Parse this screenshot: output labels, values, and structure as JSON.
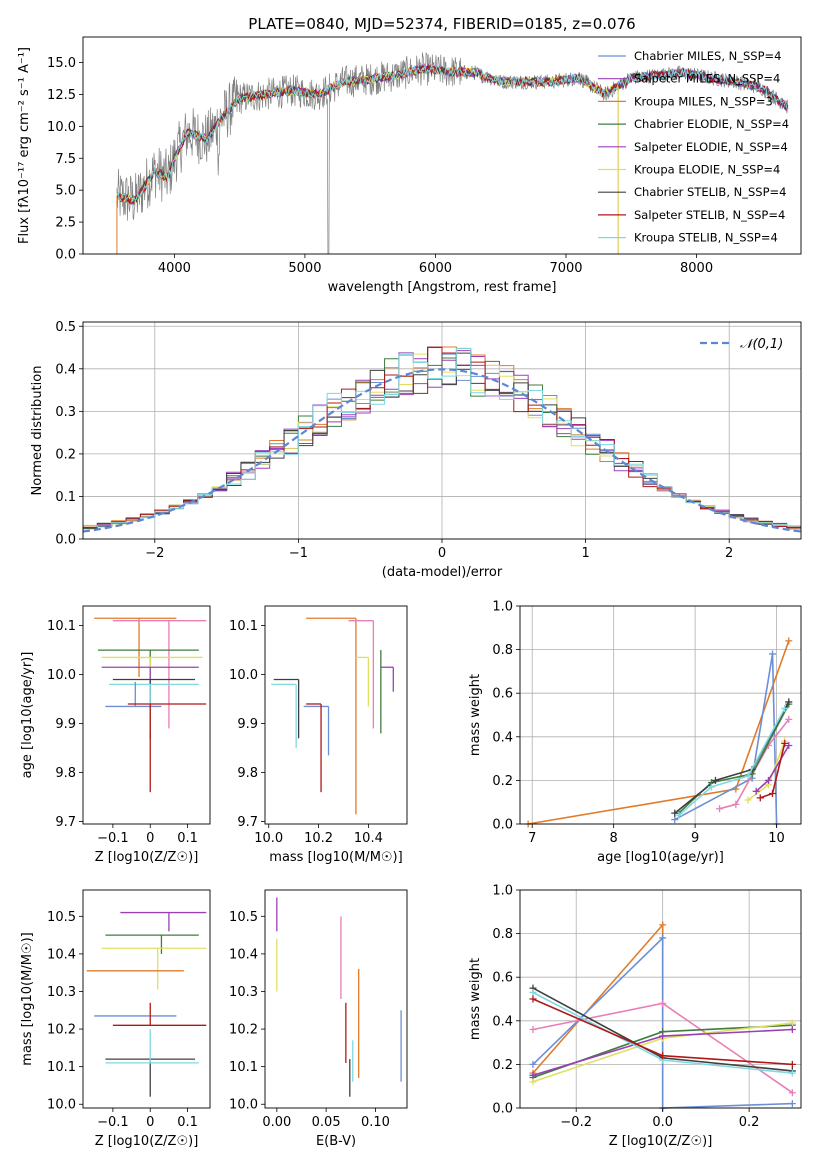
{
  "chart_data": [
    {
      "id": "spectrum",
      "type": "line",
      "title": "PLATE=0840, MJD=52374, FIBERID=0185, z=0.076",
      "xlabel": "wavelength [Angstrom, rest frame]",
      "ylabel": "Flux [fλ10⁻¹⁷ erg cm⁻² s⁻¹ A⁻¹]",
      "xlim": [
        3300,
        8800
      ],
      "ylim": [
        0,
        17
      ],
      "xticks": [
        4000,
        5000,
        6000,
        7000,
        8000
      ],
      "yticks": [
        0.0,
        2.5,
        5.0,
        7.5,
        10.0,
        12.5,
        15.0
      ],
      "grid": false,
      "legend_position": "right",
      "legend": [
        {
          "label": "Chabrier MILES, N_SSP=4",
          "color": "#6b8fd6"
        },
        {
          "label": "Salpeter MILES, N_SSP=4",
          "color": "#9a40b5"
        },
        {
          "label": "Kroupa MILES, N_SSP=3",
          "color": "#e07b2a"
        },
        {
          "label": "Chabrier ELODIE, N_SSP=4",
          "color": "#3e7d3e"
        },
        {
          "label": "Salpeter ELODIE, N_SSP=4",
          "color": "#a040c0"
        },
        {
          "label": "Kroupa ELODIE, N_SSP=4",
          "color": "#e0e060"
        },
        {
          "label": "Chabrier STELIB, N_SSP=4",
          "color": "#404040"
        },
        {
          "label": "Salpeter STELIB, N_SSP=4",
          "color": "#b01818"
        },
        {
          "label": "Kroupa STELIB, N_SSP=4",
          "color": "#80d8e0"
        }
      ],
      "data_color": "#808080",
      "data_envelope": {
        "x": [
          3560,
          3700,
          3850,
          3950,
          4000,
          4100,
          4250,
          4350,
          4500,
          4700,
          4900,
          5100,
          5300,
          5500,
          5700,
          5900,
          6100,
          6300,
          6500,
          6700,
          6900,
          7100,
          7300,
          7500,
          7700,
          7900,
          8100,
          8300,
          8500,
          8700
        ],
        "y": [
          4.5,
          4.2,
          6.5,
          6.0,
          7.5,
          9.5,
          9.0,
          10.5,
          12.2,
          12.5,
          12.8,
          12.5,
          13.5,
          13.7,
          14.0,
          14.5,
          14.3,
          14.2,
          13.5,
          13.5,
          13.5,
          13.8,
          12.5,
          13.8,
          14.0,
          14.2,
          13.8,
          13.5,
          13.0,
          11.5
        ]
      }
    },
    {
      "id": "residual-histogram",
      "type": "bar",
      "xlabel": "(data-model)/error",
      "ylabel": "Normed distribution",
      "xlim": [
        -2.5,
        2.5
      ],
      "ylim": [
        0,
        0.51
      ],
      "xticks": [
        -2,
        -1,
        0,
        1,
        2
      ],
      "yticks": [
        0.0,
        0.1,
        0.2,
        0.3,
        0.4,
        0.5
      ],
      "grid": true,
      "legend_position": "top-right",
      "gaussian_label": "𝒩(0,1)",
      "gaussian_color": "#5b87d6",
      "bin_width": 0.1,
      "bin_start": -2.5,
      "series_colors": [
        "#6b8fd6",
        "#9a40b5",
        "#e07b2a",
        "#3e7d3e",
        "#a040c0",
        "#e0e060",
        "#404040",
        "#b01818",
        "#80d8e0"
      ]
    },
    {
      "id": "age-vs-Z",
      "type": "scatter",
      "xlabel": "Z [log10(Z/Z☉)]",
      "ylabel": "age  [log10(age/yr)]",
      "xlim": [
        -0.18,
        0.16
      ],
      "ylim": [
        9.695,
        10.14
      ],
      "xticks": [
        -0.1,
        0.0,
        0.1
      ],
      "yticks": [
        9.7,
        9.8,
        9.9,
        10.0,
        10.1
      ],
      "points": [
        {
          "x": -0.03,
          "y": 10.115,
          "xerr": [
            0.12,
            0.1
          ],
          "yerr": [
            0.12,
            0.0
          ],
          "color": "#e07b2a"
        },
        {
          "x": 0.05,
          "y": 10.11,
          "xerr": [
            0.15,
            0.1
          ],
          "yerr": [
            0.22,
            0.0
          ],
          "color": "#e87fb8"
        },
        {
          "x": 0.0,
          "y": 10.05,
          "xerr": [
            0.14,
            0.13
          ],
          "yerr": [
            0.17,
            0.0
          ],
          "color": "#3e7d3e"
        },
        {
          "x": 0.0,
          "y": 10.035,
          "xerr": [
            0.13,
            0.14
          ],
          "yerr": [
            0.1,
            0.0
          ],
          "color": "#e0e060"
        },
        {
          "x": 0.0,
          "y": 10.015,
          "xerr": [
            0.13,
            0.13
          ],
          "yerr": [
            0.06,
            0.0
          ],
          "color": "#9a40b5"
        },
        {
          "x": 0.0,
          "y": 9.99,
          "xerr": [
            0.1,
            0.12
          ],
          "yerr": [
            0.12,
            0.0
          ],
          "color": "#404040"
        },
        {
          "x": 0.0,
          "y": 9.98,
          "xerr": [
            0.11,
            0.13
          ],
          "yerr": [
            0.1,
            0.0
          ],
          "color": "#80d8e0"
        },
        {
          "x": -0.04,
          "y": 9.935,
          "xerr": [
            0.08,
            0.07
          ],
          "yerr": [
            0.0,
            0.05
          ],
          "color": "#6b8fd6"
        },
        {
          "x": 0.0,
          "y": 9.94,
          "xerr": [
            0.06,
            0.15
          ],
          "yerr": [
            0.18,
            0.0
          ],
          "color": "#b01818"
        }
      ]
    },
    {
      "id": "age-vs-mass",
      "type": "scatter",
      "xlabel": "mass [log10(M/M☉)]",
      "ylabel": "",
      "xlim": [
        9.985,
        10.555
      ],
      "ylim": [
        9.695,
        10.14
      ],
      "xticks": [
        10.0,
        10.2,
        10.4
      ],
      "yticks": [
        9.7,
        9.8,
        9.9,
        10.0,
        10.1
      ],
      "points": [
        {
          "x": 10.35,
          "y": 10.115,
          "xerr": [
            0.2,
            0.0
          ],
          "yerr": [
            0.4,
            0.0
          ],
          "color": "#e07b2a"
        },
        {
          "x": 10.42,
          "y": 10.11,
          "xerr": [
            0.1,
            0.0
          ],
          "yerr": [
            0.22,
            0.0
          ],
          "color": "#e87fb8"
        },
        {
          "x": 10.45,
          "y": 10.05,
          "xerr": [
            0.0,
            0.0
          ],
          "yerr": [
            0.17,
            0.0
          ],
          "color": "#3e7d3e"
        },
        {
          "x": 10.4,
          "y": 10.035,
          "xerr": [
            0.05,
            0.0
          ],
          "yerr": [
            0.1,
            0.0
          ],
          "color": "#e0e060"
        },
        {
          "x": 10.5,
          "y": 10.015,
          "xerr": [
            0.05,
            0.0
          ],
          "yerr": [
            0.05,
            0.0
          ],
          "color": "#9a40b5"
        },
        {
          "x": 10.12,
          "y": 9.99,
          "xerr": [
            0.1,
            0.0
          ],
          "yerr": [
            0.12,
            0.0
          ],
          "color": "#404040"
        },
        {
          "x": 10.11,
          "y": 9.98,
          "xerr": [
            0.1,
            0.0
          ],
          "yerr": [
            0.13,
            0.0
          ],
          "color": "#80d8e0"
        },
        {
          "x": 10.24,
          "y": 9.935,
          "xerr": [
            0.1,
            0.0
          ],
          "yerr": [
            0.1,
            0.0
          ],
          "color": "#6b8fd6"
        },
        {
          "x": 10.21,
          "y": 9.94,
          "xerr": [
            0.06,
            0.0
          ],
          "yerr": [
            0.18,
            0.0
          ],
          "color": "#b01818"
        }
      ]
    },
    {
      "id": "massweight-vs-age",
      "type": "line",
      "xlabel": "age  [log10(age/yr)]",
      "ylabel": "mass weight",
      "xlim": [
        6.85,
        10.3
      ],
      "ylim": [
        0,
        1.0
      ],
      "xticks": [
        7,
        8,
        9,
        10
      ],
      "yticks": [
        0.0,
        0.2,
        0.4,
        0.6,
        0.8,
        1.0
      ],
      "grid": true,
      "series": [
        {
          "color": "#e07b2a",
          "x": [
            6.95,
            9.5,
            10.15
          ],
          "y": [
            0.0,
            0.16,
            0.84
          ]
        },
        {
          "color": "#6b8fd6",
          "x": [
            8.75,
            9.7,
            9.95,
            10.0
          ],
          "y": [
            0.02,
            0.21,
            0.78,
            0.0
          ]
        },
        {
          "color": "#e87fb8",
          "x": [
            9.3,
            9.5,
            9.9,
            10.15
          ],
          "y": [
            0.07,
            0.09,
            0.36,
            0.48
          ]
        },
        {
          "color": "#3e7d3e",
          "x": [
            8.8,
            9.2,
            9.7,
            10.15
          ],
          "y": [
            0.05,
            0.19,
            0.23,
            0.55
          ]
        },
        {
          "color": "#e0e060",
          "x": [
            9.65,
            9.9,
            10.1
          ],
          "y": [
            0.11,
            0.18,
            0.38
          ]
        },
        {
          "color": "#9a40b5",
          "x": [
            9.75,
            9.9,
            10.15
          ],
          "y": [
            0.15,
            0.2,
            0.36
          ]
        },
        {
          "color": "#404040",
          "x": [
            8.75,
            9.25,
            9.7,
            10.15
          ],
          "y": [
            0.05,
            0.2,
            0.25,
            0.56
          ]
        },
        {
          "color": "#80d8e0",
          "x": [
            8.8,
            9.2,
            9.65,
            10.1
          ],
          "y": [
            0.04,
            0.17,
            0.22,
            0.53
          ]
        },
        {
          "color": "#b01818",
          "x": [
            9.8,
            9.95,
            10.1
          ],
          "y": [
            0.12,
            0.14,
            0.37
          ]
        }
      ]
    },
    {
      "id": "mass-vs-Z",
      "type": "scatter",
      "xlabel": "Z [log10(Z/Z☉)]",
      "ylabel": "mass [log10(M/M☉)]",
      "xlim": [
        -0.18,
        0.16
      ],
      "ylim": [
        9.99,
        10.57
      ],
      "xticks": [
        -0.1,
        0.0,
        0.1
      ],
      "yticks": [
        10.0,
        10.1,
        10.2,
        10.3,
        10.4,
        10.5
      ],
      "points": [
        {
          "x": 0.05,
          "y": 10.51,
          "xerr": [
            0.13,
            0.1
          ],
          "yerr": [
            0.05,
            0.0
          ],
          "color": "#9a40b5"
        },
        {
          "x": 0.03,
          "y": 10.45,
          "xerr": [
            0.15,
            0.1
          ],
          "yerr": [
            0.05,
            0.0
          ],
          "color": "#3e7d3e"
        },
        {
          "x": 0.02,
          "y": 10.415,
          "xerr": [
            0.15,
            0.13
          ],
          "yerr": [
            0.11,
            0.0
          ],
          "color": "#e0e060"
        },
        {
          "x": -0.03,
          "y": 10.355,
          "xerr": [
            0.14,
            0.12
          ],
          "yerr": [
            0.0,
            0.0
          ],
          "color": "#e07b2a"
        },
        {
          "x": -0.05,
          "y": 10.235,
          "xerr": [
            0.1,
            0.12
          ],
          "yerr": [
            0.0,
            0.0
          ],
          "color": "#6b8fd6"
        },
        {
          "x": 0.0,
          "y": 10.21,
          "xerr": [
            0.1,
            0.15
          ],
          "yerr": [
            0.0,
            0.06
          ],
          "color": "#b01818"
        },
        {
          "x": 0.0,
          "y": 10.12,
          "xerr": [
            0.12,
            0.12
          ],
          "yerr": [
            0.1,
            0.0
          ],
          "color": "#404040"
        },
        {
          "x": 0.0,
          "y": 10.11,
          "xerr": [
            0.12,
            0.13
          ],
          "yerr": [
            0.0,
            0.09
          ],
          "color": "#80d8e0"
        }
      ]
    },
    {
      "id": "mass-vs-ebv",
      "type": "scatter",
      "xlabel": "E(B-V)",
      "ylabel": "",
      "xlim": [
        -0.012,
        0.132
      ],
      "ylim": [
        9.99,
        10.57
      ],
      "xticks": [
        0.0,
        0.05,
        0.1
      ],
      "xtick_labels": [
        "0.00",
        "0.05",
        "0.10"
      ],
      "yticks": [
        10.0,
        10.1,
        10.2,
        10.3,
        10.4,
        10.5
      ],
      "points": [
        {
          "x": 0.0,
          "y": 10.51,
          "yerr": [
            0.05,
            0.04
          ],
          "color": "#9a40b5"
        },
        {
          "x": 0.0,
          "y": 10.41,
          "yerr": [
            0.11,
            0.03
          ],
          "color": "#e0e060"
        },
        {
          "x": 0.065,
          "y": 10.39,
          "yerr": [
            0.11,
            0.11
          ],
          "color": "#e87fb8"
        },
        {
          "x": 0.07,
          "y": 10.19,
          "yerr": [
            0.08,
            0.08
          ],
          "color": "#b01818"
        },
        {
          "x": 0.074,
          "y": 10.12,
          "yerr": [
            0.1,
            0.0
          ],
          "color": "#404040"
        },
        {
          "x": 0.077,
          "y": 10.12,
          "yerr": [
            0.06,
            0.05
          ],
          "color": "#80d8e0"
        },
        {
          "x": 0.083,
          "y": 10.21,
          "yerr": [
            0.14,
            0.15
          ],
          "color": "#e07b2a"
        },
        {
          "x": 0.126,
          "y": 10.16,
          "yerr": [
            0.1,
            0.09
          ],
          "color": "#6b8fd6"
        }
      ]
    },
    {
      "id": "massweight-vs-Z",
      "type": "line",
      "xlabel": "Z [log10(Z/Z☉)]",
      "ylabel": "mass weight",
      "xlim": [
        -0.33,
        0.32
      ],
      "ylim": [
        0,
        1.0
      ],
      "xticks": [
        -0.2,
        0.0,
        0.2
      ],
      "xtick_labels": [
        "−0.2",
        "0.0",
        "0.2"
      ],
      "yticks": [
        0.0,
        0.2,
        0.4,
        0.6,
        0.8,
        1.0
      ],
      "grid": true,
      "series": [
        {
          "color": "#e07b2a",
          "x": [
            -0.3,
            0.0,
            0.0
          ],
          "y": [
            0.16,
            0.84,
            0.0
          ]
        },
        {
          "color": "#6b8fd6",
          "x": [
            -0.3,
            0.0,
            0.0,
            0.3
          ],
          "y": [
            0.2,
            0.78,
            0.0,
            0.02
          ]
        },
        {
          "color": "#e87fb8",
          "x": [
            -0.3,
            0.0,
            0.3
          ],
          "y": [
            0.36,
            0.48,
            0.07
          ]
        },
        {
          "color": "#3e7d3e",
          "x": [
            -0.3,
            0.0,
            0.3
          ],
          "y": [
            0.14,
            0.35,
            0.38
          ]
        },
        {
          "color": "#e0e060",
          "x": [
            -0.3,
            0.0,
            0.3
          ],
          "y": [
            0.12,
            0.32,
            0.39
          ]
        },
        {
          "color": "#9a40b5",
          "x": [
            -0.3,
            0.0,
            0.3
          ],
          "y": [
            0.15,
            0.33,
            0.36
          ]
        },
        {
          "color": "#404040",
          "x": [
            -0.3,
            0.0,
            0.3
          ],
          "y": [
            0.55,
            0.23,
            0.17
          ]
        },
        {
          "color": "#80d8e0",
          "x": [
            -0.3,
            0.0,
            0.3
          ],
          "y": [
            0.53,
            0.22,
            0.16
          ]
        },
        {
          "color": "#b01818",
          "x": [
            -0.3,
            0.0,
            0.3
          ],
          "y": [
            0.5,
            0.24,
            0.2
          ]
        }
      ]
    }
  ]
}
